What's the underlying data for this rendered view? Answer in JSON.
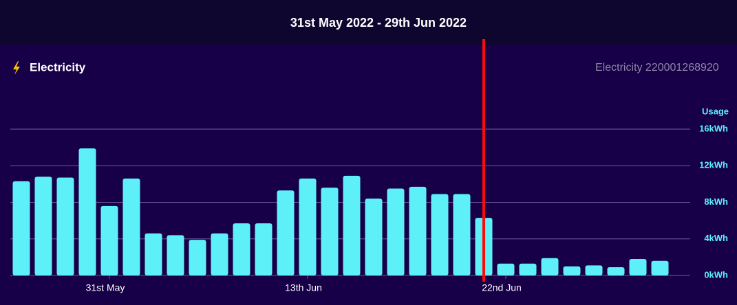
{
  "chart_data": {
    "type": "bar",
    "title": "31st May 2022 - 29th Jun 2022",
    "panel_title": "Electricity",
    "meter_label": "Electricity 220001268920",
    "y_axis_label": "Usage",
    "categories": [
      null,
      null,
      null,
      null,
      "31st May",
      null,
      null,
      null,
      null,
      null,
      null,
      null,
      null,
      "13th Jun",
      null,
      null,
      null,
      null,
      null,
      null,
      null,
      null,
      "22nd Jun",
      null,
      null,
      null,
      null,
      null,
      null,
      null
    ],
    "values": [
      10.3,
      10.8,
      10.7,
      13.9,
      7.6,
      10.6,
      4.6,
      4.4,
      3.9,
      4.6,
      5.7,
      5.7,
      9.3,
      10.6,
      9.6,
      10.9,
      8.4,
      9.5,
      9.7,
      8.9,
      8.9,
      6.3,
      1.3,
      1.3,
      1.9,
      1.0,
      1.1,
      0.9,
      1.8,
      1.6
    ],
    "color": "#5ef0f8",
    "ylim": [
      0,
      16
    ],
    "yticks": [
      {
        "value": 0,
        "label": "0kWh"
      },
      {
        "value": 4,
        "label": "4kWh"
      },
      {
        "value": 8,
        "label": "8kWh"
      },
      {
        "value": 12,
        "label": "12kWh"
      },
      {
        "value": 16,
        "label": "16kWh"
      }
    ],
    "grid": true
  }
}
